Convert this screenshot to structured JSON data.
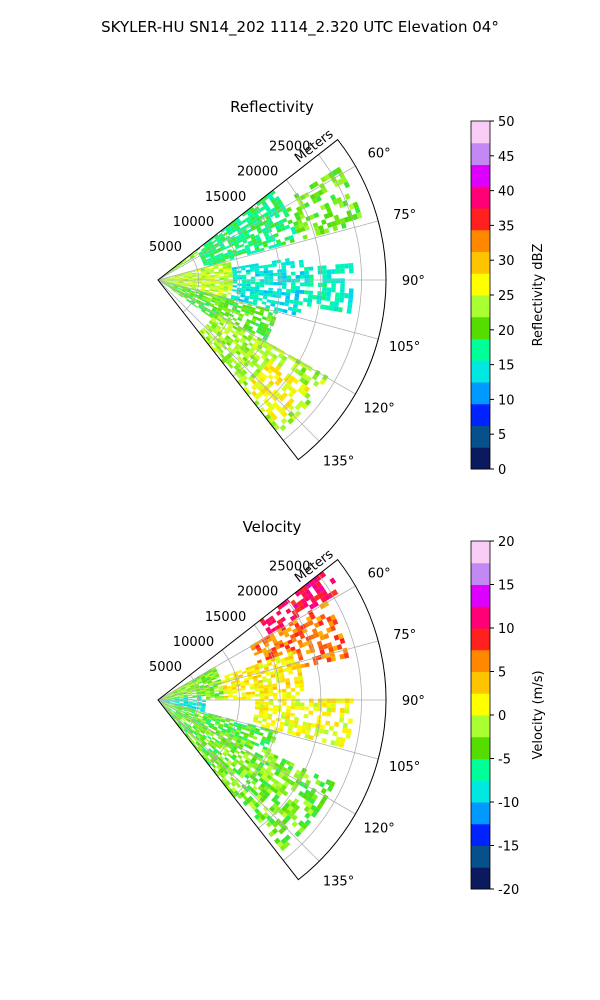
{
  "figure": {
    "suptitle": "SKYLER-HU  SN14_202  1114_2.320 UTC Elevation 04°"
  },
  "chart_data": [
    {
      "type": "polar-sector-ppi",
      "title": "Reflectivity",
      "radial_label": "Meters",
      "r_ticks": [
        5000,
        10000,
        15000,
        20000,
        25000
      ],
      "r_tick_labels": [
        "5000",
        "10000",
        "15000",
        "20000",
        "25000"
      ],
      "rlim": [
        0,
        28000
      ],
      "theta_range_deg": [
        52,
        142
      ],
      "theta_zero": "north",
      "theta_direction": "clockwise",
      "theta_ticks_deg": [
        60,
        75,
        90,
        105,
        120,
        135
      ],
      "theta_tick_labels": [
        "60°",
        "75°",
        "90°",
        "105°",
        "120°",
        "135°"
      ],
      "grid": true,
      "field_regions": [
        {
          "theta": [
            52,
            58
          ],
          "r": [
            0,
            6000
          ],
          "value": 22
        },
        {
          "theta": [
            52,
            75
          ],
          "r": [
            6000,
            18000
          ],
          "value": 17
        },
        {
          "theta": [
            58,
            75
          ],
          "r": [
            18000,
            26000
          ],
          "value": 21
        },
        {
          "theta": [
            75,
            105
          ],
          "r": [
            0,
            9000
          ],
          "value": 24
        },
        {
          "theta": [
            80,
            105
          ],
          "r": [
            9000,
            18000
          ],
          "value": 14
        },
        {
          "theta": [
            85,
            100
          ],
          "r": [
            18000,
            24000
          ],
          "value": 15
        },
        {
          "theta": [
            105,
            125
          ],
          "r": [
            0,
            15000
          ],
          "value": 20
        },
        {
          "theta": [
            120,
            142
          ],
          "r": [
            8000,
            24000
          ],
          "value": 23
        },
        {
          "theta": [
            125,
            140
          ],
          "r": [
            17000,
            23000
          ],
          "value": 27
        }
      ],
      "colorbar": {
        "label": "Reflectivity dBZ",
        "min": 0,
        "max": 50,
        "ticks": [
          0,
          5,
          10,
          15,
          20,
          25,
          30,
          35,
          40,
          45,
          50
        ],
        "tick_labels": [
          "0",
          "5",
          "10",
          "15",
          "20",
          "25",
          "30",
          "35",
          "40",
          "45",
          "50"
        ],
        "stops": [
          "#0b1a5e",
          "#06508c",
          "#0022ff",
          "#0099ff",
          "#00e8e0",
          "#00ff99",
          "#55dd00",
          "#aaff33",
          "#ffff00",
          "#ffc400",
          "#ff8800",
          "#ff2020",
          "#ff0077",
          "#dd00ff",
          "#c488f5",
          "#f8ccf5"
        ]
      }
    },
    {
      "type": "polar-sector-ppi",
      "title": "Velocity",
      "radial_label": "Meters",
      "r_ticks": [
        5000,
        10000,
        15000,
        20000,
        25000
      ],
      "r_tick_labels": [
        "5000",
        "10000",
        "15000",
        "20000",
        "25000"
      ],
      "rlim": [
        0,
        28000
      ],
      "theta_range_deg": [
        52,
        142
      ],
      "theta_zero": "north",
      "theta_direction": "clockwise",
      "theta_ticks_deg": [
        60,
        75,
        90,
        105,
        120,
        135
      ],
      "theta_tick_labels": [
        "60°",
        "75°",
        "90°",
        "105°",
        "120°",
        "135°"
      ],
      "grid": true,
      "field_regions": [
        {
          "theta": [
            52,
            60
          ],
          "r": [
            16000,
            26000
          ],
          "value": 11
        },
        {
          "theta": [
            60,
            78
          ],
          "r": [
            13000,
            24000
          ],
          "value": 7
        },
        {
          "theta": [
            70,
            90
          ],
          "r": [
            8000,
            18000
          ],
          "value": 2
        },
        {
          "theta": [
            90,
            105
          ],
          "r": [
            12000,
            24000
          ],
          "value": 1
        },
        {
          "theta": [
            60,
            90
          ],
          "r": [
            0,
            8000
          ],
          "value": -3
        },
        {
          "theta": [
            85,
            105
          ],
          "r": [
            0,
            6000
          ],
          "value": -9
        },
        {
          "theta": [
            105,
            142
          ],
          "r": [
            0,
            15000
          ],
          "value": -4
        },
        {
          "theta": [
            115,
            140
          ],
          "r": [
            10000,
            24000
          ],
          "value": -3
        }
      ],
      "colorbar": {
        "label": "Velocity (m/s)",
        "min": -20,
        "max": 20,
        "ticks": [
          -20,
          -15,
          -10,
          -5,
          0,
          5,
          10,
          15,
          20
        ],
        "tick_labels": [
          "-20",
          "-15",
          "-10",
          "-5",
          "0",
          "5",
          "10",
          "15",
          "20"
        ],
        "stops": [
          "#0b1a5e",
          "#06508c",
          "#0022ff",
          "#0099ff",
          "#00e8e0",
          "#00ff99",
          "#55dd00",
          "#aaff33",
          "#ffff00",
          "#ffc400",
          "#ff8800",
          "#ff2020",
          "#ff0077",
          "#dd00ff",
          "#c488f5",
          "#f8ccf5"
        ]
      }
    }
  ]
}
